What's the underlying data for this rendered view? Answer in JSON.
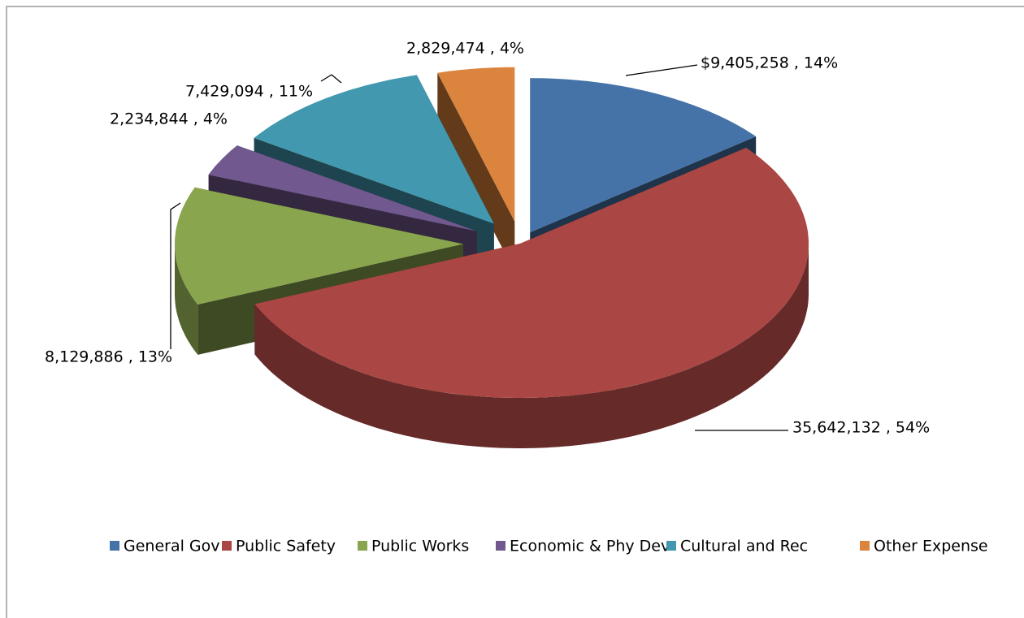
{
  "chart_data": {
    "type": "pie3d",
    "categories": [
      "General Gov",
      "Public Safety",
      "Public Works",
      "Economic & Phy Dev",
      "Cultural and Rec",
      "Other Expense"
    ],
    "values": [
      9405258,
      35642132,
      8129886,
      2234844,
      7429094,
      2829474
    ],
    "value_labels": [
      "$9,405,258 , 14%",
      "35,642,132 , 54%",
      "8,129,886 , 13%",
      "2,234,844 , 4%",
      "7,429,094 , 11%",
      "2,829,474 , 4%"
    ],
    "colors": [
      "#4572a7",
      "#aa4643",
      "#89a54e",
      "#71588f",
      "#4198af",
      "#db843d"
    ],
    "legend": "bottom"
  }
}
